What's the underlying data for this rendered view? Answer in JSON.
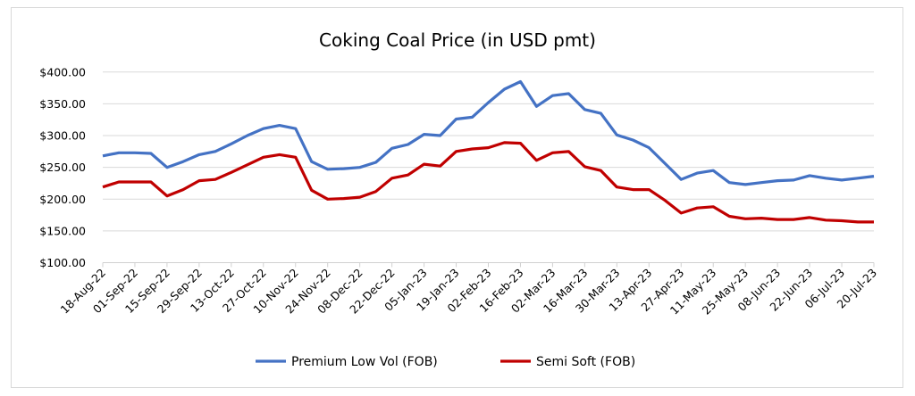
{
  "chart_data": {
    "type": "line",
    "title": "Coking Coal Price (in USD pmt)",
    "xlabel": "",
    "ylabel": "",
    "ylim": [
      100,
      400
    ],
    "y_ticks": [
      "$100.00",
      "$150.00",
      "$200.00",
      "$250.00",
      "$300.00",
      "$350.00",
      "$400.00"
    ],
    "grid": true,
    "legend_position": "bottom",
    "x": [
      "18-Aug-22",
      "25-Aug-22",
      "01-Sep-22",
      "08-Sep-22",
      "15-Sep-22",
      "22-Sep-22",
      "29-Sep-22",
      "06-Oct-22",
      "13-Oct-22",
      "20-Oct-22",
      "27-Oct-22",
      "03-Nov-22",
      "10-Nov-22",
      "17-Nov-22",
      "24-Nov-22",
      "01-Dec-22",
      "08-Dec-22",
      "15-Dec-22",
      "22-Dec-22",
      "29-Dec-22",
      "05-Jan-23",
      "12-Jan-23",
      "19-Jan-23",
      "26-Jan-23",
      "02-Feb-23",
      "09-Feb-23",
      "16-Feb-23",
      "23-Feb-23",
      "02-Mar-23",
      "09-Mar-23",
      "16-Mar-23",
      "23-Mar-23",
      "30-Mar-23",
      "06-Apr-23",
      "13-Apr-23",
      "20-Apr-23",
      "27-Apr-23",
      "04-May-23",
      "11-May-23",
      "18-May-23",
      "25-May-23",
      "01-Jun-23",
      "08-Jun-23",
      "15-Jun-23",
      "22-Jun-23",
      "29-Jun-23",
      "06-Jul-23",
      "13-Jul-23",
      "20-Jul-23"
    ],
    "x_tick_labels": [
      "18-Aug-22",
      "01-Sep-22",
      "15-Sep-22",
      "29-Sep-22",
      "13-Oct-22",
      "27-Oct-22",
      "10-Nov-22",
      "24-Nov-22",
      "08-Dec-22",
      "22-Dec-22",
      "05-Jan-23",
      "19-Jan-23",
      "02-Feb-23",
      "16-Feb-23",
      "02-Mar-23",
      "16-Mar-23",
      "30-Mar-23",
      "13-Apr-23",
      "27-Apr-23",
      "11-May-23",
      "25-May-23",
      "08-Jun-23",
      "22-Jun-23",
      "06-Jul-23",
      "20-Jul-23"
    ],
    "series": [
      {
        "name": "Premium Low Vol (FOB)",
        "color": "#4472c4",
        "values": [
          268,
          273,
          273,
          272,
          250,
          259,
          270,
          275,
          287,
          300,
          311,
          316,
          311,
          259,
          247,
          248,
          250,
          258,
          280,
          286,
          302,
          300,
          326,
          329,
          352,
          373,
          385,
          346,
          363,
          366,
          341,
          335,
          301,
          293,
          281,
          256,
          231,
          241,
          245,
          226,
          223,
          226,
          229,
          230,
          237,
          233,
          230,
          233,
          236
        ]
      },
      {
        "name": "Semi Soft (FOB)",
        "color": "#c00000",
        "values": [
          219,
          227,
          227,
          227,
          205,
          215,
          229,
          231,
          242,
          254,
          266,
          270,
          266,
          214,
          200,
          201,
          203,
          212,
          233,
          238,
          255,
          252,
          275,
          279,
          281,
          289,
          288,
          261,
          273,
          275,
          251,
          245,
          219,
          215,
          215,
          198,
          178,
          186,
          188,
          173,
          169,
          170,
          168,
          168,
          171,
          167,
          166,
          164,
          164
        ]
      }
    ]
  }
}
